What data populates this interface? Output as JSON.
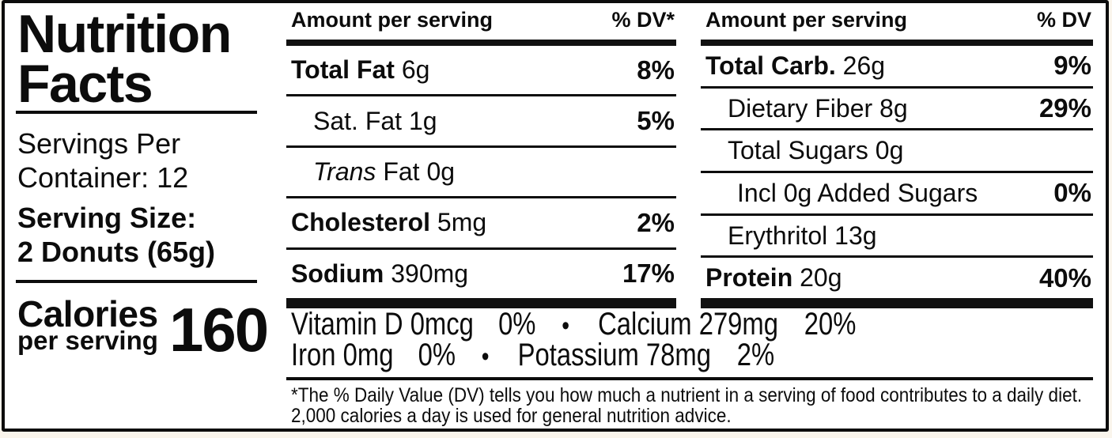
{
  "left_panel": {
    "title": "Nutrition Facts",
    "servings_line1": "Servings Per",
    "servings_line2": "Container: 12",
    "serving_size_line1": "Serving Size:",
    "serving_size_line2": "2 Donuts (65g)",
    "calories_label": "Calories",
    "calories_sublabel": "per serving",
    "calories_value": "160"
  },
  "columns": [
    {
      "header_left": "Amount per serving",
      "header_right": "% DV*",
      "rows": [
        {
          "lead": "Total Fat",
          "rest": " 6g",
          "dv": "8%"
        },
        {
          "lead": "Sat. Fat",
          "rest": " 1g",
          "dv": "5%"
        },
        {
          "lead": "Trans",
          "rest": " Fat 0g",
          "dv": ""
        },
        {
          "lead": "Cholesterol",
          "rest": " 5mg",
          "dv": "2%"
        },
        {
          "lead": "Sodium",
          "rest": " 390mg",
          "dv": "17%"
        }
      ]
    },
    {
      "header_left": "Amount per serving",
      "header_right": "% DV",
      "rows": [
        {
          "lead": "Total Carb.",
          "rest": " 26g",
          "dv": "9%"
        },
        {
          "lead": "Dietary Fiber",
          "rest": " 8g",
          "dv": "29%"
        },
        {
          "lead": "Total Sugars",
          "rest": " 0g",
          "dv": ""
        },
        {
          "lead": "Incl 0g Added Sugars",
          "rest": "",
          "dv": "0%"
        },
        {
          "lead": "Erythritol",
          "rest": " 13g",
          "dv": ""
        },
        {
          "lead": "Protein",
          "rest": " 20g",
          "dv": "40%"
        }
      ]
    }
  ],
  "micronutrients": {
    "line1": {
      "item1": "Vitamin D 0mcg",
      "dv1": "0%",
      "bullet": "•",
      "item2": "Calcium 279mg",
      "dv2": "20%"
    },
    "line2": {
      "item1": "Iron 0mg",
      "dv1": "0%",
      "bullet": "•",
      "item2": "Potassium 78mg",
      "dv2": "2%"
    }
  },
  "footnote": {
    "line1": "*The % Daily Value (DV) tells you how much a nutrient in a serving of food contributes to a daily diet.",
    "line2": "2,000 calories a day is used for general nutrition advice."
  },
  "colors": {
    "ink": "#0c0c0c",
    "label_background": "#ffffff",
    "page_background": "#faf5ec"
  }
}
